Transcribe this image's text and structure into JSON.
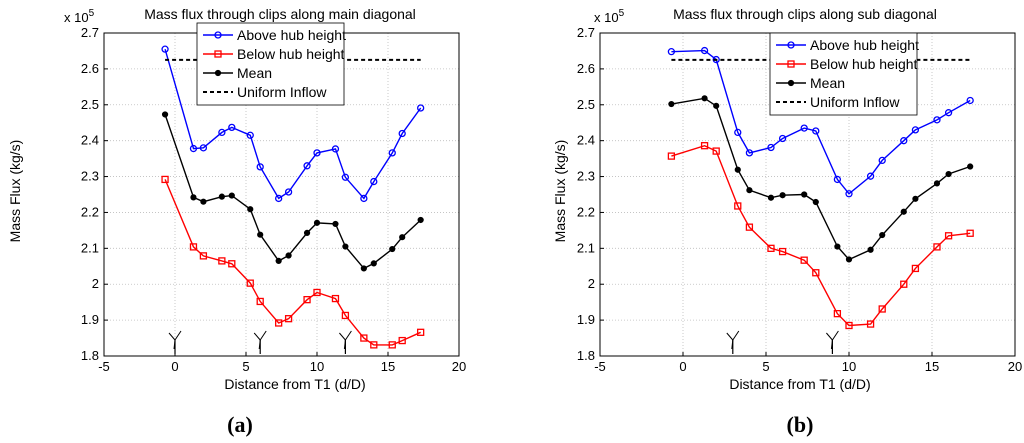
{
  "chart_data": [
    {
      "type": "line",
      "panel_label": "(a)",
      "title": "Mass flux through clips along main diagonal",
      "xlabel": "Distance from T1 (d/D)",
      "ylabel": "Mass Flux (kg/s)",
      "exponent_label": "x 10",
      "exponent_power": "5",
      "xlim": [
        -5,
        20
      ],
      "ylim": [
        1.8,
        2.7
      ],
      "xticks": [
        "-5",
        "0",
        "5",
        "10",
        "15",
        "20"
      ],
      "yticks": [
        "1.8",
        "1.9",
        "2",
        "2.1",
        "2.2",
        "2.3",
        "2.4",
        "2.5",
        "2.6",
        "2.7"
      ],
      "grid": true,
      "legend_position": "top-right",
      "turbine_markers_x": [
        0,
        6,
        12
      ],
      "series": [
        {
          "name": "Above hub height",
          "color": "#0000ff",
          "marker": "circle",
          "x": [
            -0.7,
            1.3,
            2.0,
            3.3,
            4.0,
            5.3,
            6.0,
            7.3,
            8.0,
            9.3,
            10.0,
            11.3,
            12.0,
            13.3,
            14.0,
            15.3,
            16.0,
            17.3
          ],
          "y": [
            2.655,
            2.378,
            2.38,
            2.423,
            2.437,
            2.415,
            2.327,
            2.239,
            2.257,
            2.33,
            2.366,
            2.377,
            2.298,
            2.239,
            2.286,
            2.366,
            2.42,
            2.491
          ]
        },
        {
          "name": "Below hub height",
          "color": "#ff0000",
          "marker": "square",
          "x": [
            -0.7,
            1.3,
            2.0,
            3.3,
            4.0,
            5.3,
            6.0,
            7.3,
            8.0,
            9.3,
            10.0,
            11.3,
            12.0,
            13.3,
            14.0,
            15.3,
            16.0,
            17.3
          ],
          "y": [
            2.292,
            2.104,
            2.079,
            2.065,
            2.057,
            2.003,
            1.952,
            1.892,
            1.904,
            1.957,
            1.977,
            1.96,
            1.913,
            1.85,
            1.831,
            1.831,
            1.843,
            1.866
          ]
        },
        {
          "name": "Mean",
          "color": "#000000",
          "marker": "dot",
          "x": [
            -0.7,
            1.3,
            2.0,
            3.3,
            4.0,
            5.3,
            6.0,
            7.3,
            8.0,
            9.3,
            10.0,
            11.3,
            12.0,
            13.3,
            14.0,
            15.3,
            16.0,
            17.3
          ],
          "y": [
            2.473,
            2.242,
            2.23,
            2.244,
            2.247,
            2.209,
            2.138,
            2.065,
            2.08,
            2.143,
            2.171,
            2.168,
            2.105,
            2.044,
            2.058,
            2.098,
            2.131,
            2.179
          ]
        },
        {
          "name": "Uniform Inflow",
          "color": "#000000",
          "marker": "none",
          "dashed": true,
          "x": [
            -0.7,
            17.3
          ],
          "y": [
            2.625,
            2.625
          ]
        }
      ]
    },
    {
      "type": "line",
      "panel_label": "(b)",
      "title": "Mass flux through clips along sub diagonal",
      "xlabel": "Distance from T1 (d/D)",
      "ylabel": "Mass Flux (kg/s)",
      "exponent_label": "x 10",
      "exponent_power": "5",
      "xlim": [
        -5,
        20
      ],
      "ylim": [
        1.8,
        2.7
      ],
      "xticks": [
        "-5",
        "0",
        "5",
        "10",
        "15",
        "20"
      ],
      "yticks": [
        "1.8",
        "1.9",
        "2",
        "2.1",
        "2.2",
        "2.3",
        "2.4",
        "2.5",
        "2.6",
        "2.7"
      ],
      "grid": true,
      "legend_position": "top-right",
      "turbine_markers_x": [
        3,
        9
      ],
      "series": [
        {
          "name": "Above hub height",
          "color": "#0000ff",
          "marker": "circle",
          "x": [
            -0.7,
            1.3,
            2.0,
            3.3,
            4.0,
            5.3,
            6.0,
            7.3,
            8.0,
            9.3,
            10.0,
            11.3,
            12.0,
            13.3,
            14.0,
            15.3,
            16.0,
            17.3
          ],
          "y": [
            2.648,
            2.651,
            2.626,
            2.423,
            2.366,
            2.381,
            2.406,
            2.435,
            2.427,
            2.292,
            2.252,
            2.301,
            2.345,
            2.4,
            2.43,
            2.458,
            2.478,
            2.512
          ]
        },
        {
          "name": "Below hub height",
          "color": "#ff0000",
          "marker": "square",
          "x": [
            -0.7,
            1.3,
            2.0,
            3.3,
            4.0,
            5.3,
            6.0,
            7.3,
            8.0,
            9.3,
            10.0,
            11.3,
            12.0,
            13.3,
            14.0,
            15.3,
            16.0,
            17.3
          ],
          "y": [
            2.357,
            2.386,
            2.371,
            2.218,
            2.159,
            2.1,
            2.091,
            2.067,
            2.032,
            1.918,
            1.885,
            1.889,
            1.931,
            2.0,
            2.044,
            2.104,
            2.135,
            2.142
          ]
        },
        {
          "name": "Mean",
          "color": "#000000",
          "marker": "dot",
          "x": [
            -0.7,
            1.3,
            2.0,
            3.3,
            4.0,
            5.3,
            6.0,
            7.3,
            8.0,
            9.3,
            10.0,
            11.3,
            12.0,
            13.3,
            14.0,
            15.3,
            16.0,
            17.3
          ],
          "y": [
            2.502,
            2.518,
            2.497,
            2.319,
            2.262,
            2.241,
            2.248,
            2.25,
            2.229,
            2.105,
            2.069,
            2.096,
            2.137,
            2.202,
            2.238,
            2.281,
            2.307,
            2.328
          ]
        },
        {
          "name": "Uniform Inflow",
          "color": "#000000",
          "marker": "none",
          "dashed": true,
          "x": [
            -0.7,
            17.3
          ],
          "y": [
            2.625,
            2.625
          ]
        }
      ]
    }
  ]
}
